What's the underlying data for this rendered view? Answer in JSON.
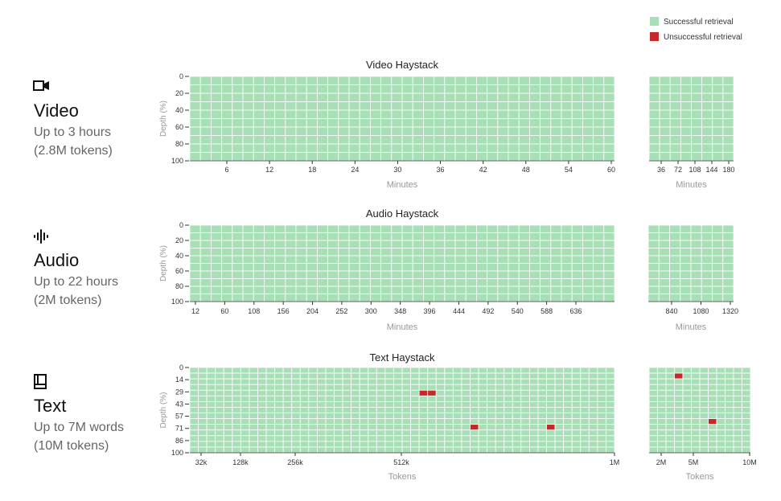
{
  "legend": {
    "success_label": "Successful retrieval",
    "fail_label": "Unsuccessful retrieval",
    "success_color": "#a8dfb6",
    "fail_color": "#c62828"
  },
  "sections": [
    {
      "icon": "video-camera-icon",
      "title": "Video",
      "subtitle1": "Up to 3 hours",
      "subtitle2": "(2.8M tokens)"
    },
    {
      "icon": "audio-waveform-icon",
      "title": "Audio",
      "subtitle1": "Up to 22 hours",
      "subtitle2": "(2M tokens)"
    },
    {
      "icon": "book-icon",
      "title": "Text",
      "subtitle1": "Up to 7M words",
      "subtitle2": "(10M tokens)"
    }
  ],
  "chart_data": [
    {
      "type": "heatmap",
      "title": "Video Haystack",
      "ylabel": "Depth (%)",
      "yticks": [
        "0",
        "20",
        "40",
        "60",
        "80",
        "100"
      ],
      "main": {
        "cols": 40,
        "rows": 10,
        "xlabel": "Minutes",
        "xticks": [
          "6",
          "12",
          "18",
          "24",
          "30",
          "36",
          "42",
          "48",
          "54",
          "60"
        ],
        "failures": []
      },
      "extended": {
        "cols": 8,
        "rows": 10,
        "xlabel": "Minutes",
        "xticks": [
          "36",
          "72",
          "108",
          "144",
          "180"
        ],
        "failures": []
      }
    },
    {
      "type": "heatmap",
      "title": "Audio Haystack",
      "ylabel": "Depth (%)",
      "yticks": [
        "0",
        "20",
        "40",
        "60",
        "80",
        "100"
      ],
      "main": {
        "cols": 40,
        "rows": 10,
        "xlabel": "Minutes",
        "xticks": [
          "12",
          "60",
          "108",
          "156",
          "204",
          "252",
          "300",
          "348",
          "396",
          "444",
          "492",
          "540",
          "588",
          "636"
        ],
        "failures": []
      },
      "extended": {
        "cols": 8,
        "rows": 10,
        "xlabel": "Minutes",
        "xticks": [
          "840",
          "1080",
          "1320"
        ],
        "failures": []
      }
    },
    {
      "type": "heatmap",
      "title": "Text Haystack",
      "ylabel": "Depth (%)",
      "yticks": [
        "0",
        "14",
        "29",
        "43",
        "57",
        "71",
        "86",
        "100"
      ],
      "main": {
        "cols": 50,
        "rows": 15,
        "xlabel": "Tokens",
        "xticks": [
          "32k",
          "128k",
          "256k",
          "512k",
          "1M"
        ],
        "failures": [
          [
            27,
            4
          ],
          [
            28,
            4
          ],
          [
            33,
            10
          ],
          [
            42,
            10
          ]
        ]
      },
      "extended": {
        "cols": 12,
        "rows": 15,
        "xlabel": "Tokens",
        "xticks": [
          "2M",
          "5M",
          "10M"
        ],
        "failures": [
          [
            3,
            1
          ],
          [
            7,
            9
          ]
        ]
      }
    }
  ]
}
